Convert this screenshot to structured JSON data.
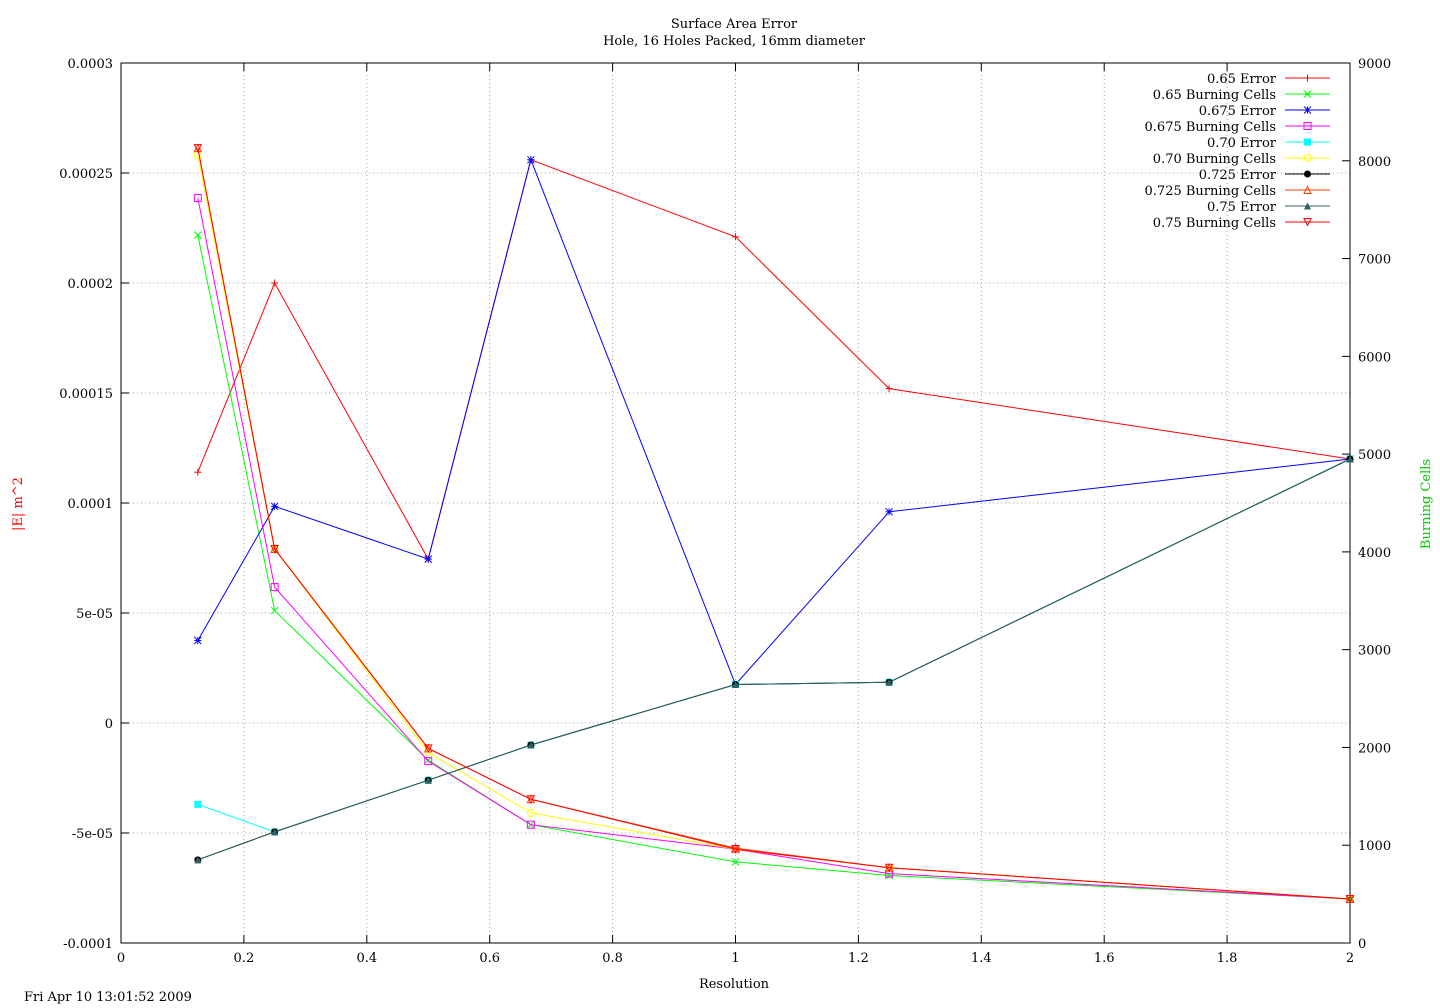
{
  "chart_data": {
    "type": "line",
    "title": "Surface Area Error",
    "subtitle": "Hole, 16 Holes Packed, 16mm diameter",
    "xlabel": "Resolution",
    "ylabel_left": "|E| m^2",
    "ylabel_right": "Burning Cells",
    "xlim": [
      0,
      2
    ],
    "ylim_left": [
      -0.0001,
      0.0003
    ],
    "ylim_right": [
      0,
      9000
    ],
    "x_ticks": [
      "0",
      "0.2",
      "0.4",
      "0.6",
      "0.8",
      "1",
      "1.2",
      "1.4",
      "1.6",
      "1.8",
      "2"
    ],
    "y_left_ticks": [
      "-0.0001",
      "-5e-05",
      "0",
      "5e-05",
      "0.0001",
      "0.00015",
      "0.0002",
      "0.00025",
      "0.0003"
    ],
    "y_right_ticks": [
      "0",
      "1000",
      "2000",
      "3000",
      "4000",
      "5000",
      "6000",
      "7000",
      "8000",
      "9000"
    ],
    "grid": true,
    "legend_position": "top-right",
    "x": [
      0.125,
      0.25,
      0.5,
      0.667,
      1,
      1.25,
      2
    ],
    "series": [
      {
        "name": "0.65 Error",
        "axis": "left",
        "color": "#ff0000",
        "marker": "plus",
        "values": [
          0.000114,
          0.0002,
          7.45e-05,
          0.000256,
          0.000221,
          0.000152,
          0.00012
        ]
      },
      {
        "name": "0.65 Burning Cells",
        "axis": "right",
        "color": "#00ff00",
        "marker": "cross",
        "values": [
          7240,
          3400,
          1870,
          1210,
          830,
          690,
          450
        ]
      },
      {
        "name": "0.675 Error",
        "axis": "left",
        "color": "#0000ff",
        "marker": "star",
        "values": [
          3.75e-05,
          9.85e-05,
          7.45e-05,
          0.000256,
          1.75e-05,
          9.6e-05,
          0.00012
        ]
      },
      {
        "name": "0.675 Burning Cells",
        "axis": "right",
        "color": "#ff00ff",
        "marker": "square-open",
        "values": [
          7620,
          3640,
          1860,
          1210,
          960,
          710,
          450
        ]
      },
      {
        "name": "0.70 Error",
        "axis": "left",
        "color": "#00ffff",
        "marker": "square-filled",
        "values": [
          -3.7e-05,
          -4.95e-05,
          -2.6e-05,
          -1e-05,
          1.75e-05,
          1.85e-05,
          0.00012
        ]
      },
      {
        "name": "0.70 Burning Cells",
        "axis": "right",
        "color": "#ffff00",
        "marker": "circle-open",
        "values": [
          8060,
          4030,
          1950,
          1330,
          960,
          770,
          450
        ]
      },
      {
        "name": "0.725 Error",
        "axis": "left",
        "color": "#000000",
        "marker": "circle-filled",
        "values": [
          -6.22e-05,
          -4.95e-05,
          -2.6e-05,
          -1e-05,
          1.75e-05,
          1.85e-05,
          0.00012
        ]
      },
      {
        "name": "0.725 Burning Cells",
        "axis": "right",
        "color": "#ff4000",
        "marker": "triangle-open",
        "values": [
          8130,
          4030,
          1990,
          1470,
          970,
          770,
          450
        ]
      },
      {
        "name": "0.75 Error",
        "axis": "left",
        "color": "#306060",
        "marker": "triangle-filled",
        "values": [
          -6.22e-05,
          -4.95e-05,
          -2.6e-05,
          -1e-05,
          1.75e-05,
          1.85e-05,
          0.00012
        ]
      },
      {
        "name": "0.75 Burning Cells",
        "axis": "right",
        "color": "#ff0000",
        "marker": "triangle-down-open",
        "values": [
          8130,
          4030,
          1990,
          1470,
          960,
          770,
          450
        ]
      }
    ]
  },
  "timestamp": "Fri Apr 10 13:01:52 2009"
}
